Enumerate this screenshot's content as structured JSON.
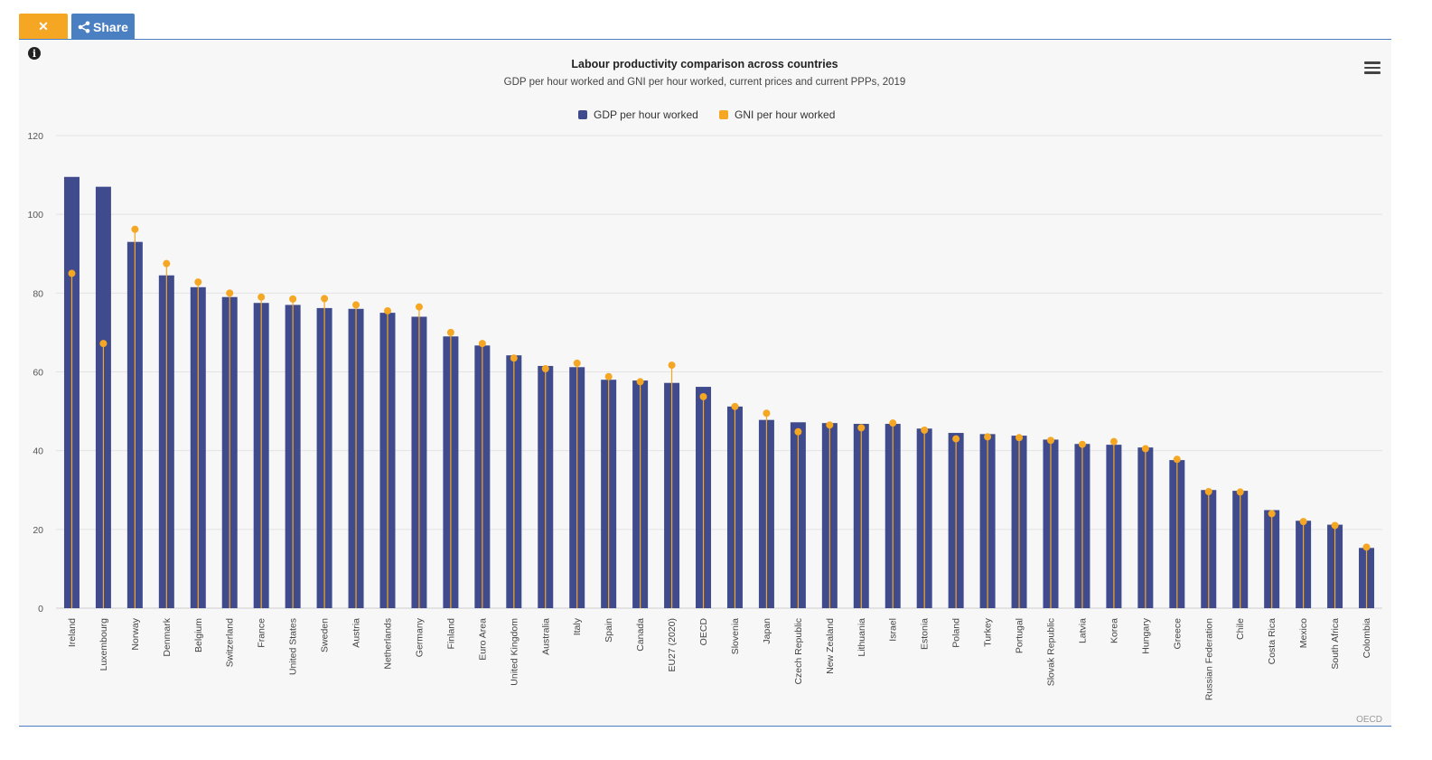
{
  "toolbar": {
    "close_label": "✕",
    "share_label": "Share"
  },
  "chart_data": {
    "type": "bar",
    "title": "Labour productivity comparison across countries",
    "subtitle": "GDP per hour worked and GNI per hour worked, current prices and current PPPs, 2019",
    "credit": "OECD",
    "ylim": [
      0,
      120
    ],
    "yticks": [
      0,
      20,
      40,
      60,
      80,
      100,
      120
    ],
    "legend": {
      "placement": "top-center"
    },
    "categories": [
      "Ireland",
      "Luxembourg",
      "Norway",
      "Denmark",
      "Belgium",
      "Switzerland",
      "France",
      "United States",
      "Sweden",
      "Austria",
      "Netherlands",
      "Germany",
      "Finland",
      "Euro Area",
      "United Kingdom",
      "Australia",
      "Italy",
      "Spain",
      "Canada",
      "EU27 (2020)",
      "OECD",
      "Slovenia",
      "Japan",
      "Czech Republic",
      "New Zealand",
      "Lithuania",
      "Israel",
      "Estonia",
      "Poland",
      "Turkey",
      "Portugal",
      "Slovak Republic",
      "Latvia",
      "Korea",
      "Hungary",
      "Greece",
      "Russian Federation",
      "Chile",
      "Costa Rica",
      "Mexico",
      "South Africa",
      "Colombia"
    ],
    "series": [
      {
        "name": "GDP per hour worked",
        "color": "#3f4b8c",
        "kind": "bar",
        "values": [
          109.5,
          107,
          93,
          84.5,
          81.5,
          79,
          77.5,
          77,
          76.2,
          76,
          75,
          74,
          69,
          66.7,
          64.2,
          61.5,
          61.2,
          58,
          57.8,
          57.2,
          56.2,
          51.2,
          47.8,
          47.2,
          47,
          46.8,
          46.8,
          45.6,
          44.5,
          44.2,
          43.8,
          42.8,
          41.7,
          41.5,
          40.8,
          37.6,
          30,
          29.8,
          24.9,
          22.2,
          21.2,
          15.3
        ]
      },
      {
        "name": "GNI per hour worked",
        "color": "#f5a623",
        "kind": "dot",
        "values": [
          85,
          67.2,
          96.2,
          87.5,
          82.8,
          80,
          79,
          78.5,
          78.6,
          77,
          75.5,
          76.5,
          70,
          67.2,
          63.5,
          60.8,
          62.2,
          58.8,
          57.5,
          61.7,
          53.7,
          51.2,
          49.5,
          44.8,
          46.5,
          45.8,
          47,
          45.2,
          43,
          43.5,
          43.3,
          42.6,
          41.6,
          42.3,
          40.5,
          37.8,
          29.6,
          29.5,
          24,
          22,
          21,
          15.5
        ]
      }
    ]
  }
}
